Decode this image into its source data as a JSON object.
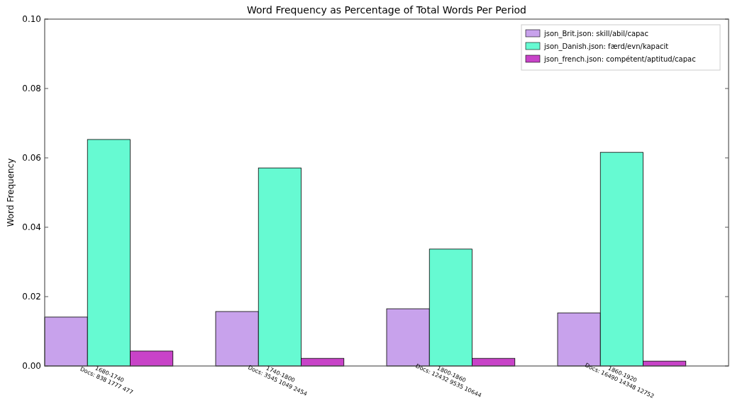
{
  "chart_data": {
    "type": "bar",
    "title": "Word Frequency as Percentage of Total Words Per Period",
    "ylabel": "Word Frequency",
    "categories": [
      "1680-1740\nDocs: 838 1777 477",
      "1740-1800\nDocs: 3545 1049 2454",
      "1800-1860\nDocs: 12432 9535 10644",
      "1860-1920\nDocs: 16490 14348 12752"
    ],
    "series": [
      {
        "name": "json_Brit.json: skill/abil/capac",
        "color": "#c8a2ec",
        "values": [
          0.0141,
          0.0157,
          0.0165,
          0.0153
        ]
      },
      {
        "name": "json_Danish.json: færd/evn/kapacit",
        "color": "#66fad2",
        "values": [
          0.0653,
          0.0571,
          0.0337,
          0.0616
        ]
      },
      {
        "name": "json_french.json: compétent/aptitud/capac",
        "color": "#c843c8",
        "values": [
          0.0043,
          0.0022,
          0.0022,
          0.0014
        ]
      }
    ],
    "ylim": [
      0,
      0.1
    ],
    "yticks": [
      {
        "value": 0,
        "label": "0.00"
      },
      {
        "value": 0.02,
        "label": "0.02"
      },
      {
        "value": 0.04,
        "label": "0.04"
      },
      {
        "value": 0.06,
        "label": "0.06"
      },
      {
        "value": 0.08,
        "label": "0.08"
      },
      {
        "value": 0.1,
        "label": "0.10"
      }
    ],
    "grid": false,
    "legend": "top right"
  }
}
